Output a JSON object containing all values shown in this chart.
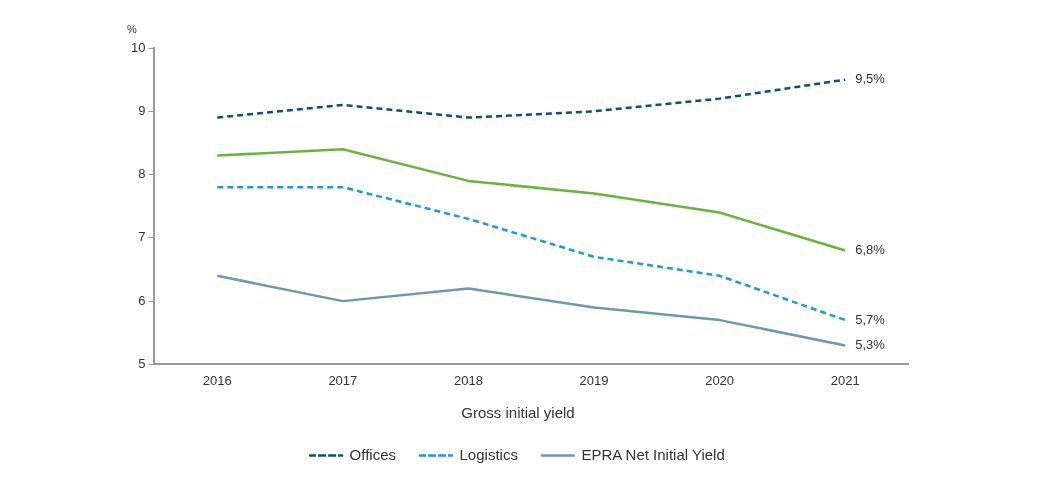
{
  "chart_data": {
    "type": "line",
    "ylabel": "%",
    "legend_title": "Gross initial yield",
    "categories": [
      "2016",
      "2017",
      "2018",
      "2019",
      "2020",
      "2021"
    ],
    "series": [
      {
        "color": "#6ab43e",
        "line_style": "solid",
        "values": [
          8.3,
          8.4,
          7.9,
          7.7,
          7.4,
          6.8
        ],
        "value_labels": [
          null,
          null,
          null,
          null,
          null,
          "6,8%"
        ]
      },
      {
        "name": "Offices",
        "color": "#0d4f7c",
        "line_style": "dashed",
        "values": [
          8.9,
          9.1,
          8.9,
          9.0,
          9.2,
          9.5
        ],
        "value_labels": [
          null,
          null,
          null,
          null,
          null,
          "9,5%"
        ]
      },
      {
        "name": "Logistics",
        "color": "#1a9ad6",
        "line_style": "dashed",
        "values": [
          7.8,
          7.8,
          7.3,
          6.7,
          6.4,
          5.7
        ],
        "value_labels": [
          null,
          null,
          null,
          null,
          null,
          "5,7%"
        ]
      },
      {
        "name": "EPRA Net Initial Yield",
        "color": "#6e98ad",
        "line_style": "solid",
        "values": [
          6.4,
          6.0,
          6.2,
          5.9,
          5.7,
          5.3
        ],
        "value_labels": [
          null,
          null,
          null,
          null,
          null,
          "5,3%"
        ]
      }
    ],
    "ylim": [
      5,
      10
    ],
    "yticks": [
      5,
      6,
      7,
      8,
      9,
      10
    ],
    "grid": false,
    "legend": "bottom",
    "marker": "none"
  }
}
